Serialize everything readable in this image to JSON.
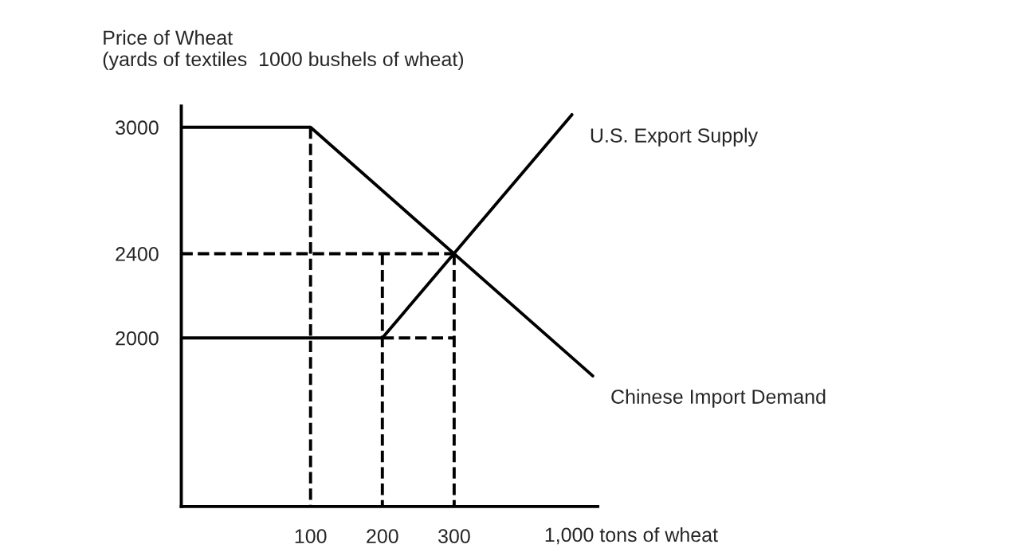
{
  "chart_data": {
    "type": "line",
    "xlabel": "1,000 tons of wheat",
    "ylabel": "Price of Wheat\n(yards of textiles  1000 bushels of wheat)",
    "series": [
      {
        "name": "Chinese Import Demand",
        "color": "#000000",
        "x": [
          -80,
          100,
          493
        ],
        "values": [
          3000,
          3000,
          1820
        ]
      },
      {
        "name": "U.S. Export Supply",
        "color": "#000000",
        "x": [
          -80,
          200,
          464
        ],
        "values": [
          2000,
          2000,
          3060
        ]
      },
      {
        "color": "#000000",
        "line_style": "dashed",
        "x": [
          -80,
          300
        ],
        "values": [
          2400,
          2400
        ]
      },
      {
        "color": "#000000",
        "line_style": "dashed",
        "x": [
          100,
          100
        ],
        "values": [
          3000,
          1200
        ]
      },
      {
        "color": "#000000",
        "line_style": "dashed",
        "x": [
          200,
          200
        ],
        "values": [
          2400,
          1200
        ]
      },
      {
        "color": "#000000",
        "line_style": "dashed",
        "x": [
          200,
          300
        ],
        "values": [
          2000,
          2000
        ]
      },
      {
        "color": "#000000",
        "line_style": "dashed",
        "x": [
          300,
          300
        ],
        "values": [
          2400,
          1200
        ]
      }
    ],
    "xlim": [
      -80,
      500
    ],
    "xticks": [
      100,
      200,
      300
    ],
    "ylim": [
      1200,
      3100
    ],
    "yticks": [
      2000,
      2400,
      3000
    ],
    "grid": false,
    "legend": false,
    "line_style": "solid",
    "marker": "none"
  }
}
